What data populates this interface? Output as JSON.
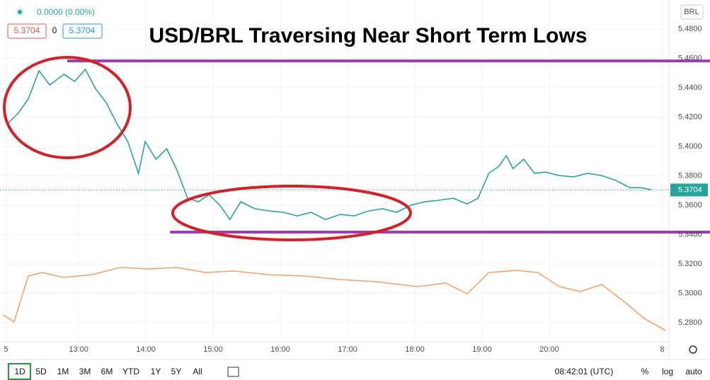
{
  "chart_data": {
    "type": "line",
    "title": "USD/BRL Traversing Near Short Term Lows",
    "series": [
      {
        "color": "#26a69a",
        "x": [
          11.94,
          12.1,
          12.25,
          12.41,
          12.57,
          12.78,
          12.94,
          13.1,
          13.25,
          13.41,
          13.57,
          13.73,
          13.89,
          13.99,
          14.15,
          14.31,
          14.46,
          14.62,
          14.78,
          14.94,
          15.1,
          15.25,
          15.41,
          15.62,
          15.83,
          16.04,
          16.25,
          16.46,
          16.67,
          16.89,
          17.1,
          17.31,
          17.52,
          17.73,
          17.94,
          18.15,
          18.36,
          18.57,
          18.78,
          18.94,
          19.1,
          19.25,
          19.36,
          19.46,
          19.62,
          19.78,
          19.94,
          20.15,
          20.36,
          20.57,
          20.78,
          20.99,
          21.2,
          21.36,
          21.52
        ],
        "values": [
          5.4154,
          5.4226,
          5.4323,
          5.4516,
          5.4419,
          5.4492,
          5.4443,
          5.4525,
          5.4395,
          5.4299,
          5.4154,
          5.4034,
          5.3817,
          5.4034,
          5.3913,
          5.3985,
          5.3841,
          5.3648,
          5.3624,
          5.3672,
          5.36,
          5.3503,
          5.3624,
          5.3576,
          5.3561,
          5.3552,
          5.3528,
          5.3552,
          5.3503,
          5.3537,
          5.3528,
          5.3561,
          5.3576,
          5.3552,
          5.36,
          5.3624,
          5.3634,
          5.3648,
          5.3609,
          5.3648,
          5.3817,
          5.3865,
          5.3937,
          5.385,
          5.3913,
          5.3817,
          5.3826,
          5.3802,
          5.3793,
          5.3817,
          5.3802,
          5.3769,
          5.372,
          5.372,
          5.3706
        ]
      },
      {
        "color": "#f5a26f",
        "x": [
          11.88,
          12.04,
          12.25,
          12.46,
          12.78,
          13.2,
          13.62,
          14.04,
          14.46,
          14.89,
          15.31,
          15.83,
          16.36,
          16.89,
          17.41,
          18.04,
          18.46,
          18.78,
          19.1,
          19.52,
          19.83,
          20.15,
          20.46,
          20.78,
          21.1,
          21.41,
          21.73
        ],
        "values": [
          5.2853,
          5.2805,
          5.3118,
          5.3142,
          5.3108,
          5.3127,
          5.3176,
          5.3166,
          5.3176,
          5.3142,
          5.3152,
          5.3127,
          5.3118,
          5.3094,
          5.3079,
          5.3046,
          5.307,
          5.2997,
          5.3142,
          5.3156,
          5.3142,
          5.3046,
          5.3012,
          5.306,
          5.2949,
          5.2829,
          5.2747
        ]
      }
    ],
    "xlim": [
      11.83,
      21.78
    ],
    "ylim": [
      5.267,
      5.4998
    ],
    "xticks": [
      {
        "value": 11.92,
        "label": "5"
      },
      {
        "value": 13,
        "label": "13:00"
      },
      {
        "value": 14,
        "label": "14:00"
      },
      {
        "value": 15,
        "label": "15:00"
      },
      {
        "value": 16,
        "label": "16:00"
      },
      {
        "value": 17,
        "label": "17:00"
      },
      {
        "value": 18,
        "label": "18:00"
      },
      {
        "value": 19,
        "label": "19:00"
      },
      {
        "value": 20,
        "label": "20:00"
      },
      {
        "value": 21.68,
        "label": "8"
      }
    ],
    "yticks": [
      {
        "value": 5.48,
        "label": "5.4800"
      },
      {
        "value": 5.46,
        "label": "5.4600"
      },
      {
        "value": 5.44,
        "label": "5.4400"
      },
      {
        "value": 5.42,
        "label": "5.4200"
      },
      {
        "value": 5.4,
        "label": "5.4000"
      },
      {
        "value": 5.38,
        "label": "5.3800"
      },
      {
        "value": 5.36,
        "label": "5.3600"
      },
      {
        "value": 5.34,
        "label": "5.3400"
      },
      {
        "value": 5.32,
        "label": "5.3200"
      },
      {
        "value": 5.3,
        "label": "5.3000"
      },
      {
        "value": 5.28,
        "label": "5.2800"
      }
    ],
    "grid": true,
    "last_price": {
      "value": 5.3704,
      "color": "#26a69a"
    },
    "levels": [
      {
        "value": 5.4583,
        "x_start": 12.83,
        "color": "#9c3fae"
      },
      {
        "value": 5.3417,
        "x_start": 14.36,
        "color": "#9c3fae"
      }
    ]
  },
  "legend_bar": {
    "change": "0.0000 (0.00%)",
    "bid": "5.3704",
    "spread": "0",
    "ask": "5.3704"
  },
  "currency": "BRL",
  "toolbar": {
    "ranges": [
      "1D",
      "5D",
      "1M",
      "3M",
      "6M",
      "YTD",
      "1Y",
      "5Y",
      "All"
    ],
    "clock": "08:42:01 (UTC)",
    "options": [
      "%",
      "log",
      "auto"
    ]
  }
}
